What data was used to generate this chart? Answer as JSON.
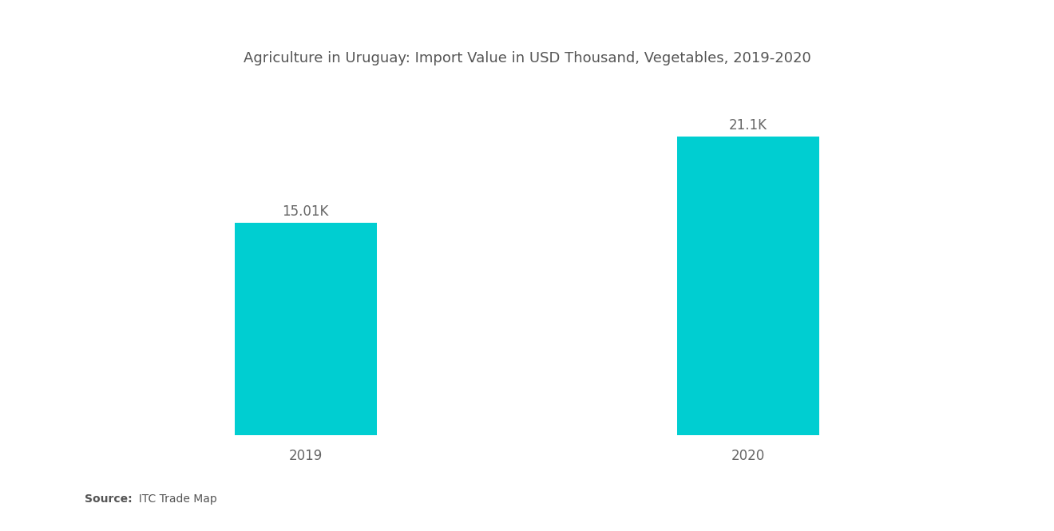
{
  "title": "Agriculture in Uruguay: Import Value in USD Thousand, Vegetables, 2019-2020",
  "categories": [
    "2019",
    "2020"
  ],
  "values": [
    15010,
    21100
  ],
  "labels": [
    "15.01K",
    "21.1K"
  ],
  "bar_color": "#00CED1",
  "background_color": "#ffffff",
  "title_fontsize": 13,
  "label_fontsize": 12,
  "tick_fontsize": 12,
  "source_bold": "Source:",
  "source_rest": "  ITC Trade Map",
  "ylim": [
    0,
    24000
  ],
  "bar_width": 0.32,
  "xlim": [
    -0.5,
    1.5
  ]
}
